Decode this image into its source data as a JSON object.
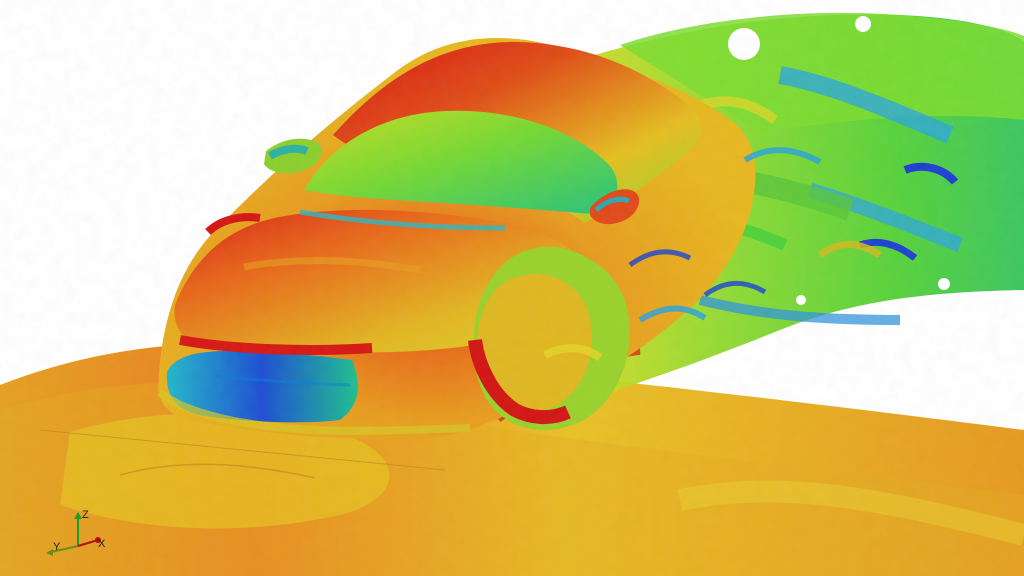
{
  "colors": {
    "background": "#ffffff",
    "field_red": "#d81414",
    "field_orange": "#e4731d",
    "field_yellow": "#e6dc1e",
    "field_green": "#66d82f",
    "field_cyan": "#1ebac4",
    "field_blue": "#1c3fd0",
    "axis_x": "#b41010",
    "axis_y": "#6b8c1c",
    "axis_z": "#1d9b35"
  },
  "axis_triad": {
    "z_label": "Z",
    "y_label": "Y",
    "x_label": "X"
  }
}
